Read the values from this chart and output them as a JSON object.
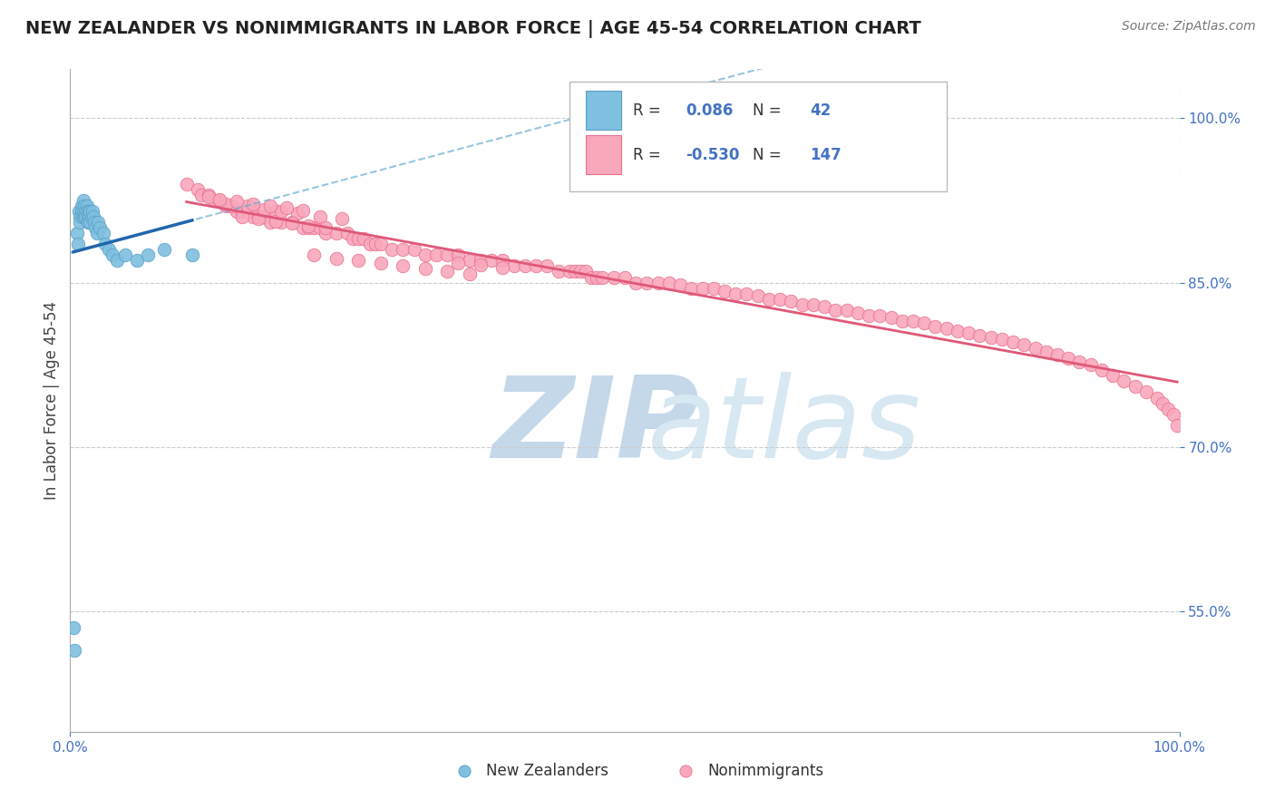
{
  "title": "NEW ZEALANDER VS NONIMMIGRANTS IN LABOR FORCE | AGE 45-54 CORRELATION CHART",
  "source": "Source: ZipAtlas.com",
  "ylabel": "In Labor Force | Age 45-54",
  "xlim": [
    0.0,
    1.0
  ],
  "ylim": [
    0.44,
    1.045
  ],
  "yticks": [
    0.55,
    0.7,
    0.85,
    1.0
  ],
  "ytick_labels": [
    "55.0%",
    "70.0%",
    "85.0%",
    "100.0%"
  ],
  "xticks": [
    0.0,
    1.0
  ],
  "xtick_labels": [
    "0.0%",
    "100.0%"
  ],
  "r_nz": 0.086,
  "n_nz": 42,
  "r_ni": -0.53,
  "n_ni": 147,
  "nz_color": "#7fbfdf",
  "ni_color": "#f9a8bc",
  "nz_edge_color": "#5aa0c8",
  "ni_edge_color": "#e87090",
  "nz_line_color": "#2166ac",
  "nz_dash_color": "#6aafd4",
  "ni_line_color": "#e05878",
  "background_color": "#ffffff",
  "title_color": "#222222",
  "source_color": "#777777",
  "axis_color": "#4472C4",
  "legend_color": "#4472C4",
  "watermark_zip_color": "#c5d8ea",
  "watermark_atlas_color": "#d8e8f2",
  "nz_x": [
    0.003,
    0.004,
    0.006,
    0.007,
    0.008,
    0.009,
    0.009,
    0.01,
    0.01,
    0.011,
    0.012,
    0.012,
    0.013,
    0.013,
    0.014,
    0.014,
    0.015,
    0.015,
    0.016,
    0.016,
    0.017,
    0.017,
    0.018,
    0.018,
    0.019,
    0.02,
    0.021,
    0.022,
    0.023,
    0.024,
    0.025,
    0.027,
    0.03,
    0.032,
    0.035,
    0.038,
    0.042,
    0.05,
    0.06,
    0.07,
    0.085,
    0.11
  ],
  "nz_y": [
    0.535,
    0.515,
    0.895,
    0.885,
    0.915,
    0.91,
    0.905,
    0.92,
    0.915,
    0.91,
    0.925,
    0.915,
    0.92,
    0.91,
    0.915,
    0.91,
    0.92,
    0.915,
    0.91,
    0.905,
    0.915,
    0.91,
    0.915,
    0.905,
    0.91,
    0.915,
    0.91,
    0.905,
    0.9,
    0.895,
    0.905,
    0.9,
    0.895,
    0.885,
    0.88,
    0.875,
    0.87,
    0.875,
    0.87,
    0.875,
    0.88,
    0.875
  ],
  "ni_x": [
    0.105,
    0.115,
    0.118,
    0.125,
    0.13,
    0.135,
    0.14,
    0.145,
    0.15,
    0.155,
    0.16,
    0.165,
    0.17,
    0.175,
    0.18,
    0.19,
    0.2,
    0.21,
    0.215,
    0.22,
    0.225,
    0.23,
    0.24,
    0.25,
    0.255,
    0.26,
    0.265,
    0.27,
    0.275,
    0.28,
    0.29,
    0.3,
    0.31,
    0.32,
    0.33,
    0.34,
    0.35,
    0.36,
    0.37,
    0.38,
    0.39,
    0.4,
    0.41,
    0.42,
    0.43,
    0.44,
    0.45,
    0.455,
    0.46,
    0.465,
    0.47,
    0.475,
    0.48,
    0.49,
    0.5,
    0.51,
    0.52,
    0.53,
    0.54,
    0.55,
    0.56,
    0.57,
    0.58,
    0.59,
    0.6,
    0.61,
    0.62,
    0.63,
    0.64,
    0.65,
    0.66,
    0.67,
    0.68,
    0.69,
    0.7,
    0.71,
    0.72,
    0.73,
    0.74,
    0.75,
    0.76,
    0.77,
    0.78,
    0.79,
    0.8,
    0.81,
    0.82,
    0.83,
    0.84,
    0.85,
    0.86,
    0.87,
    0.88,
    0.89,
    0.9,
    0.91,
    0.92,
    0.93,
    0.94,
    0.95,
    0.96,
    0.97,
    0.98,
    0.985,
    0.99,
    0.995,
    0.998,
    0.22,
    0.24,
    0.26,
    0.28,
    0.3,
    0.32,
    0.34,
    0.36,
    0.145,
    0.165,
    0.185,
    0.205,
    0.225,
    0.245,
    0.155,
    0.17,
    0.185,
    0.2,
    0.215,
    0.23,
    0.35,
    0.37,
    0.39,
    0.14,
    0.16,
    0.175,
    0.19,
    0.125,
    0.135,
    0.15,
    0.165,
    0.18,
    0.195,
    0.21
  ],
  "ni_y": [
    0.94,
    0.935,
    0.93,
    0.93,
    0.925,
    0.925,
    0.92,
    0.92,
    0.915,
    0.915,
    0.915,
    0.91,
    0.91,
    0.91,
    0.905,
    0.905,
    0.905,
    0.9,
    0.9,
    0.9,
    0.9,
    0.895,
    0.895,
    0.895,
    0.89,
    0.89,
    0.89,
    0.885,
    0.885,
    0.885,
    0.88,
    0.88,
    0.88,
    0.875,
    0.875,
    0.875,
    0.875,
    0.87,
    0.87,
    0.87,
    0.87,
    0.865,
    0.865,
    0.865,
    0.865,
    0.86,
    0.86,
    0.86,
    0.86,
    0.86,
    0.855,
    0.855,
    0.855,
    0.855,
    0.855,
    0.85,
    0.85,
    0.85,
    0.85,
    0.848,
    0.845,
    0.845,
    0.845,
    0.842,
    0.84,
    0.84,
    0.838,
    0.835,
    0.835,
    0.833,
    0.83,
    0.83,
    0.828,
    0.825,
    0.825,
    0.822,
    0.82,
    0.82,
    0.818,
    0.815,
    0.815,
    0.813,
    0.81,
    0.808,
    0.806,
    0.804,
    0.802,
    0.8,
    0.798,
    0.796,
    0.793,
    0.79,
    0.787,
    0.784,
    0.781,
    0.778,
    0.775,
    0.77,
    0.765,
    0.76,
    0.755,
    0.75,
    0.745,
    0.74,
    0.735,
    0.73,
    0.72,
    0.875,
    0.872,
    0.87,
    0.868,
    0.865,
    0.863,
    0.86,
    0.858,
    0.92,
    0.918,
    0.915,
    0.913,
    0.91,
    0.908,
    0.91,
    0.908,
    0.906,
    0.904,
    0.902,
    0.9,
    0.868,
    0.866,
    0.864,
    0.922,
    0.92,
    0.917,
    0.915,
    0.928,
    0.926,
    0.924,
    0.922,
    0.92,
    0.918,
    0.916
  ]
}
